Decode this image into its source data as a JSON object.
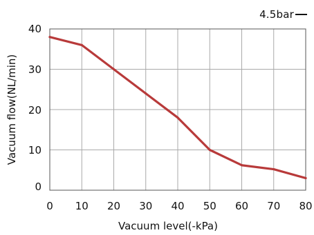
{
  "chart_data": {
    "type": "line",
    "title": "",
    "xlabel": "Vacuum level(-kPa)",
    "ylabel": "Vacuum flow(NL/min)",
    "x_ticks": [
      "0",
      "10",
      "20",
      "30",
      "40",
      "50",
      "60",
      "70",
      "80"
    ],
    "y_ticks": [
      "0",
      "10",
      "20",
      "30",
      "40"
    ],
    "xlim": [
      0,
      80
    ],
    "ylim": [
      0,
      40
    ],
    "grid": true,
    "legend_position": "top-right",
    "series": [
      {
        "name": "4.5bar",
        "color": "#b83a3a",
        "x": [
          0,
          10,
          20,
          30,
          40,
          50,
          60,
          70,
          80
        ],
        "y": [
          38,
          36,
          30,
          24,
          18,
          10,
          6.2,
          5.2,
          3
        ]
      }
    ]
  }
}
